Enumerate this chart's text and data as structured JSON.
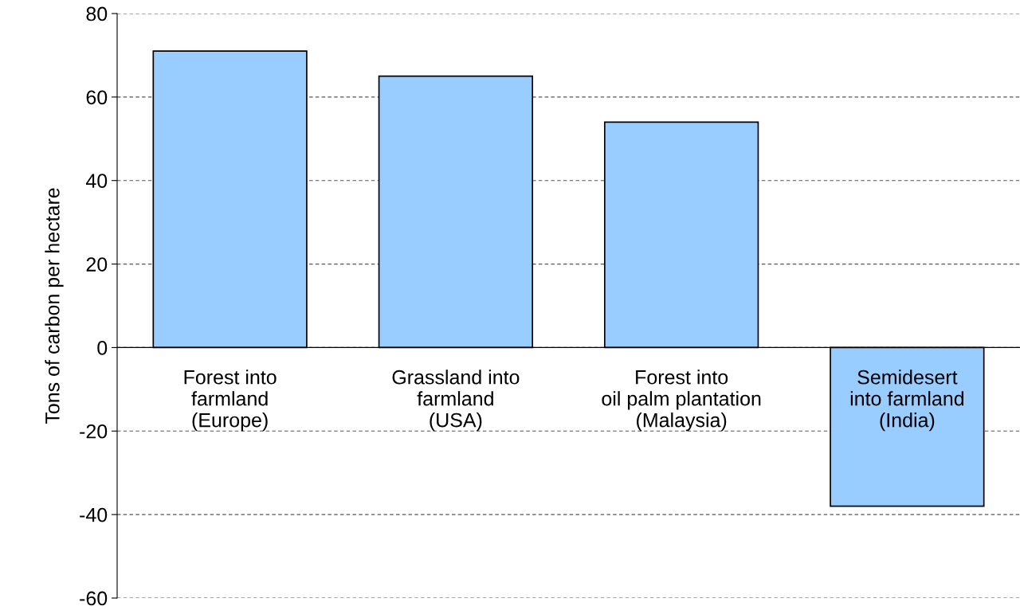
{
  "chart_data": {
    "type": "bar",
    "ylabel": "Tons of carbon per hectare",
    "categories": [
      "Forest into\nfarmland\n(Europe)",
      "Grassland into\nfarmland\n(USA)",
      "Forest into\noil palm plantation\n(Malaysia)",
      "Semidesert\ninto farmland\n(India)"
    ],
    "values": [
      71,
      65,
      54,
      -38
    ],
    "color": "#99ccff",
    "ylim": [
      -60,
      80
    ],
    "yticks": [
      -60,
      -40,
      -20,
      0,
      20,
      40,
      60,
      80
    ],
    "grid": "y"
  }
}
